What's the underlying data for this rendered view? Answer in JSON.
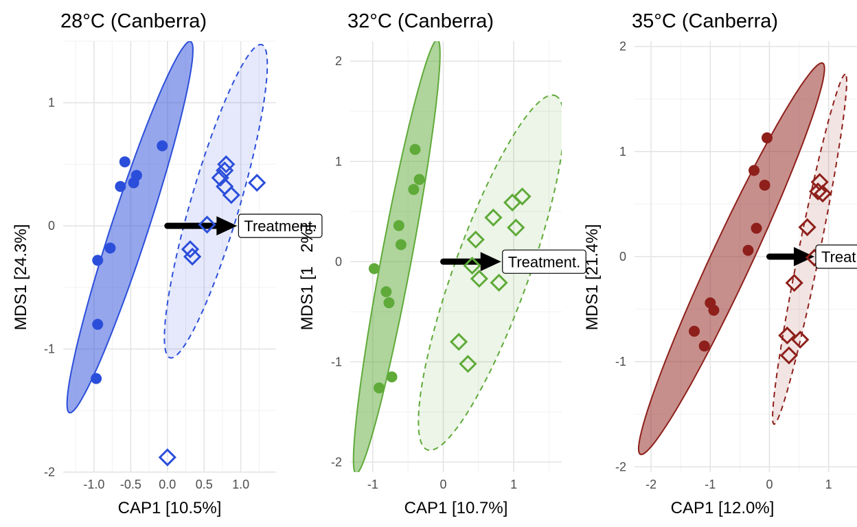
{
  "chart_data": [
    {
      "type": "scatter",
      "title": "28°C (Canberra)",
      "xlabel": "CAP1 [10.5%]",
      "ylabel": "MDS1 [24.3%]",
      "xlim": [
        -1.42,
        1.48
      ],
      "ylim": [
        -2.0,
        1.5
      ],
      "xticks": [
        -1.0,
        -0.5,
        0.0,
        0.5,
        1.0
      ],
      "xtick_labels": [
        "-1.0",
        "-0.5",
        "0.0",
        "0.5",
        "1.0"
      ],
      "yticks": [
        -2,
        -1,
        0,
        1
      ],
      "ytick_labels": [
        "-2",
        "-1",
        "0",
        "1"
      ],
      "grid": true,
      "color": "#2B4EDA",
      "series": [
        {
          "marker": "circle-filled",
          "points": [
            [
              -0.07,
              0.65
            ],
            [
              -0.58,
              0.52
            ],
            [
              -0.42,
              0.41
            ],
            [
              -0.46,
              0.35
            ],
            [
              -0.64,
              0.32
            ],
            [
              -0.78,
              -0.18
            ],
            [
              -0.95,
              -0.28
            ],
            [
              -0.95,
              -0.8
            ],
            [
              -0.97,
              -1.24
            ]
          ],
          "ellipse": {
            "center": [
              -0.51,
              -0.01
            ],
            "rx": 1.72,
            "ry": 0.23,
            "angle_deg": 61.0,
            "style": "solid"
          }
        },
        {
          "marker": "diamond-open",
          "points": [
            [
              0.8,
              0.5
            ],
            [
              0.78,
              0.45
            ],
            [
              0.72,
              0.39
            ],
            [
              0.78,
              0.32
            ],
            [
              0.87,
              0.25
            ],
            [
              1.22,
              0.35
            ],
            [
              0.54,
              0.01
            ],
            [
              0.31,
              -0.19
            ],
            [
              0.34,
              -0.25
            ],
            [
              0.0,
              -1.88
            ]
          ],
          "ellipse": {
            "center": [
              0.66,
              0.2
            ],
            "rx": 1.42,
            "ry": 0.31,
            "angle_deg": 63.0,
            "style": "dashed"
          }
        }
      ],
      "arrow": {
        "from": [
          0.0,
          0.0
        ],
        "to": [
          0.95,
          0.0
        ]
      },
      "annotation": {
        "text": "Treatment.",
        "at": [
          0.95,
          0.0
        ]
      }
    },
    {
      "type": "scatter",
      "title": "32°C (Canberra)",
      "xlabel": "CAP1 [10.7%]",
      "ylabel": "MDS1 [1",
      "ylabel_tail": "2%]",
      "xlim": [
        -1.32,
        1.68
      ],
      "ylim": [
        -2.1,
        2.2
      ],
      "xticks": [
        -1,
        0,
        1
      ],
      "xtick_labels": [
        "-1",
        "0",
        "1"
      ],
      "yticks": [
        -2,
        -1,
        0,
        1,
        2
      ],
      "ytick_labels": [
        "-2",
        "-1",
        "0",
        "1",
        "2"
      ],
      "grid": true,
      "color": "#5FAA39",
      "series": [
        {
          "marker": "circle-filled",
          "points": [
            [
              -0.4,
              1.12
            ],
            [
              -0.34,
              0.82
            ],
            [
              -0.42,
              0.72
            ],
            [
              -0.63,
              0.36
            ],
            [
              -0.6,
              0.17
            ],
            [
              -0.98,
              -0.07
            ],
            [
              -0.81,
              -0.3
            ],
            [
              -0.77,
              -0.41
            ],
            [
              -0.73,
              -1.15
            ],
            [
              -0.91,
              -1.26
            ]
          ],
          "ellipse": {
            "center": [
              -0.66,
              0.05
            ],
            "rx": 2.24,
            "ry": 0.21,
            "angle_deg": 75.0,
            "style": "solid"
          }
        },
        {
          "marker": "diamond-open",
          "points": [
            [
              1.12,
              0.65
            ],
            [
              0.98,
              0.59
            ],
            [
              0.71,
              0.44
            ],
            [
              1.03,
              0.34
            ],
            [
              0.46,
              0.22
            ],
            [
              0.41,
              -0.04
            ],
            [
              0.51,
              -0.17
            ],
            [
              0.79,
              -0.21
            ],
            [
              0.22,
              -0.8
            ],
            [
              0.35,
              -1.02
            ]
          ],
          "ellipse": {
            "center": [
              0.68,
              -0.11
            ],
            "rx": 1.99,
            "ry": 0.5,
            "angle_deg": 62.0,
            "style": "dashed"
          }
        }
      ],
      "arrow": {
        "from": [
          0.0,
          0.0
        ],
        "to": [
          0.82,
          0.0
        ]
      },
      "annotation": {
        "text": "Treatment.",
        "at": [
          0.82,
          0.0
        ]
      }
    },
    {
      "type": "scatter",
      "title": "35°C (Canberra)",
      "xlabel": "CAP1 [12.0%]",
      "ylabel": "MDS1 [21.4%]",
      "xlim": [
        -2.28,
        1.48
      ],
      "ylim": [
        -2.05,
        2.05
      ],
      "xticks": [
        -2,
        -1,
        0,
        1
      ],
      "xtick_labels": [
        "-2",
        "-1",
        "0",
        "1"
      ],
      "yticks": [
        -2,
        -1,
        0,
        1,
        2
      ],
      "ytick_labels": [
        "-2",
        "-1",
        "0",
        "1",
        "2"
      ],
      "grid": true,
      "color": "#8E1F1A",
      "series": [
        {
          "marker": "circle-filled",
          "points": [
            [
              -0.04,
              1.13
            ],
            [
              -0.26,
              0.82
            ],
            [
              -0.08,
              0.68
            ],
            [
              -0.22,
              0.27
            ],
            [
              -0.36,
              0.06
            ],
            [
              -1.0,
              -0.44
            ],
            [
              -0.94,
              -0.51
            ],
            [
              -1.27,
              -0.71
            ],
            [
              -1.1,
              -0.85
            ]
          ],
          "ellipse": {
            "center": [
              -0.64,
              -0.02
            ],
            "rx": 2.42,
            "ry": 0.29,
            "angle_deg": 50.0,
            "style": "solid"
          }
        },
        {
          "marker": "diamond-open",
          "points": [
            [
              0.85,
              0.71
            ],
            [
              0.9,
              0.6
            ],
            [
              0.82,
              0.62
            ],
            [
              0.64,
              0.28
            ],
            [
              0.76,
              -0.01
            ],
            [
              0.42,
              -0.25
            ],
            [
              0.3,
              -0.75
            ],
            [
              0.52,
              -0.79
            ],
            [
              0.33,
              -0.94
            ]
          ],
          "ellipse": {
            "center": [
              0.68,
              0.07
            ],
            "rx": 1.77,
            "ry": 0.17,
            "angle_deg": 70.0,
            "style": "dashed"
          }
        }
      ],
      "arrow": {
        "from": [
          0.0,
          0.0
        ],
        "to": [
          0.76,
          0.0
        ]
      },
      "annotation": {
        "text": "Treatment.",
        "at": [
          0.76,
          0.0
        ]
      }
    }
  ]
}
